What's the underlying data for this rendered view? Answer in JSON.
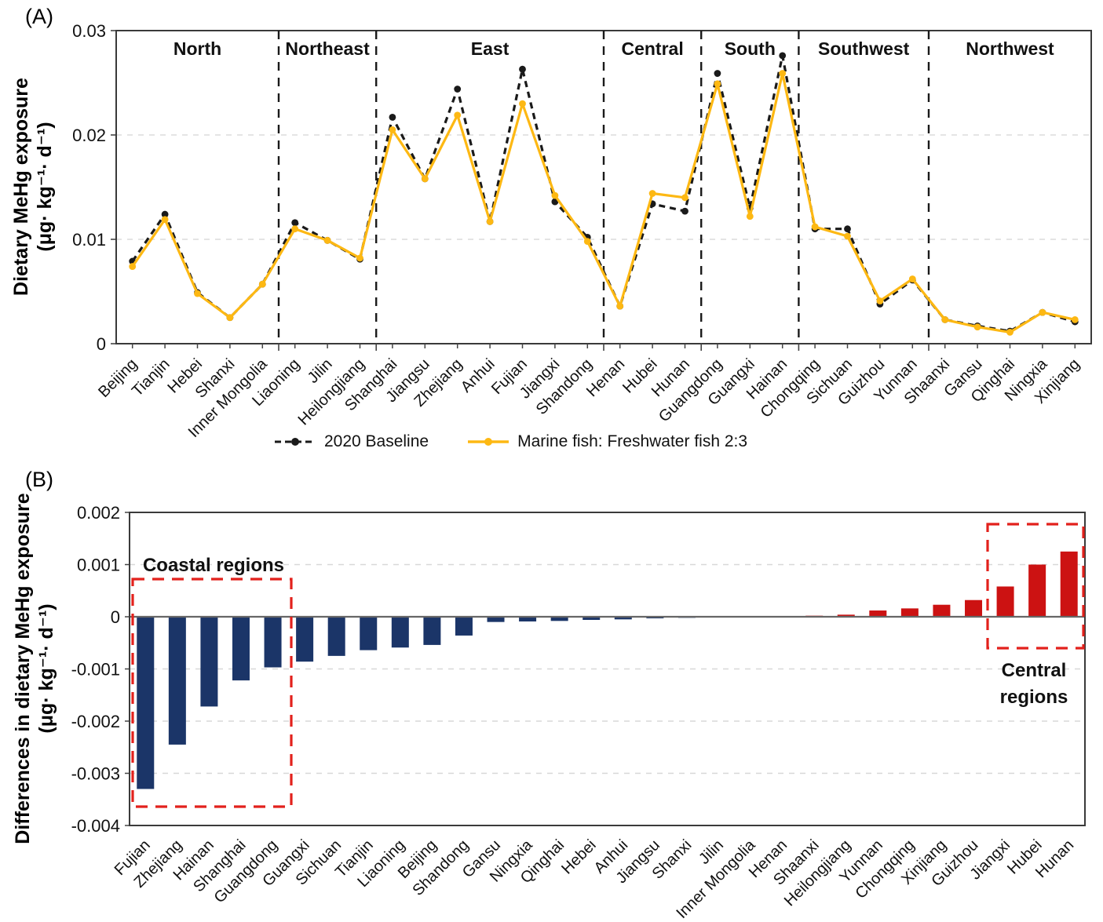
{
  "page": {
    "panel_a_label": "(A)",
    "panel_b_label": "(B)"
  },
  "chart_data": [
    {
      "type": "line",
      "panel": "A",
      "ylabel_line1": "Dietary MeHg exposure",
      "ylabel_line2": "(μg· kg⁻¹· d⁻¹)",
      "ylim": [
        0,
        0.03
      ],
      "yticks": [
        0,
        0.01,
        0.02,
        0.03
      ],
      "ytick_labels": [
        "0",
        "0.01",
        "0.02",
        "0.03"
      ],
      "grid": "dashed-horizontal",
      "legend_position": "bottom",
      "categories": [
        "Beijing",
        "Tianjin",
        "Hebei",
        "Shanxi",
        "Inner Mongolia",
        "Liaoning",
        "Jilin",
        "Heilongjiang",
        "Shanghai",
        "Jiangsu",
        "Zhejiang",
        "Anhui",
        "Fujian",
        "Jiangxi",
        "Shandong",
        "Henan",
        "Hubei",
        "Hunan",
        "Guangdong",
        "Guangxi",
        "Hainan",
        "Chongqing",
        "Sichuan",
        "Guizhou",
        "Yunnan",
        "Shaanxi",
        "Gansu",
        "Qinghai",
        "Ningxia",
        "Xinjiang"
      ],
      "regions": [
        {
          "label": "North",
          "count": 5
        },
        {
          "label": "Northeast",
          "count": 3
        },
        {
          "label": "East",
          "count": 7
        },
        {
          "label": "Central",
          "count": 3
        },
        {
          "label": "South",
          "count": 3
        },
        {
          "label": "Southwest",
          "count": 4
        },
        {
          "label": "Northwest",
          "count": 5
        }
      ],
      "series": [
        {
          "name": "2020 Baseline",
          "color": "#1a1a1a",
          "style": "dashed",
          "values": [
            0.0079,
            0.0124,
            0.0049,
            0.0025,
            0.0057,
            0.0116,
            0.0099,
            0.0081,
            0.0217,
            0.0158,
            0.0244,
            0.0117,
            0.0263,
            0.0136,
            0.0102,
            0.0036,
            0.0134,
            0.0127,
            0.0259,
            0.013,
            0.0276,
            0.011,
            0.011,
            0.0038,
            0.0061,
            0.0023,
            0.0017,
            0.0012,
            0.003,
            0.0021
          ]
        },
        {
          "name": "Marine fish: Freshwater fish 2:3",
          "color": "#FDB813",
          "style": "solid",
          "values": [
            0.0074,
            0.0119,
            0.0048,
            0.0025,
            0.0057,
            0.011,
            0.0099,
            0.0082,
            0.0205,
            0.0158,
            0.0219,
            0.0117,
            0.023,
            0.0142,
            0.0098,
            0.0036,
            0.0144,
            0.014,
            0.0249,
            0.0122,
            0.0259,
            0.0112,
            0.0103,
            0.0041,
            0.0062,
            0.0023,
            0.0016,
            0.0011,
            0.003,
            0.0023
          ]
        }
      ]
    },
    {
      "type": "bar",
      "panel": "B",
      "ylabel_line1": "Differences in dietary MeHg exposure",
      "ylabel_line2": "(μg· kg⁻¹· d⁻¹)",
      "ylim": [
        -0.004,
        0.002
      ],
      "yticks": [
        0.002,
        0.001,
        0,
        -0.001,
        -0.002,
        -0.003,
        -0.004
      ],
      "ytick_labels": [
        "0.002",
        "0.001",
        "0",
        "-0.001",
        "-0.002",
        "-0.003",
        "-0.004"
      ],
      "grid": "dashed-horizontal",
      "categories": [
        "Fujian",
        "Zhejiang",
        "Hainan",
        "Shanghai",
        "Guangdong",
        "Guangxi",
        "Sichuan",
        "Tianjin",
        "Liaoning",
        "Beijing",
        "Shandong",
        "Gansu",
        "Ningxia",
        "Qinghai",
        "Hebei",
        "Anhui",
        "Jiangsu",
        "Shanxi",
        "Jilin",
        "Inner Mongolia",
        "Henan",
        "Shaanxi",
        "Heilongjiang",
        "Yunnan",
        "Chongqing",
        "Xinjiang",
        "Guizhou",
        "Jiangxi",
        "Hubei",
        "Hunan"
      ],
      "values": [
        -0.0033,
        -0.00245,
        -0.00172,
        -0.00122,
        -0.00097,
        -0.00086,
        -0.00075,
        -0.00064,
        -0.00059,
        -0.00054,
        -0.00036,
        -0.0001,
        -9e-05,
        -8e-05,
        -6e-05,
        -5e-05,
        -3e-05,
        -2e-05,
        -1e-05,
        -1e-05,
        -5e-06,
        2e-05,
        4e-05,
        0.00012,
        0.00016,
        0.00023,
        0.00032,
        0.00058,
        0.001,
        0.00125
      ],
      "bar_colors": {
        "negative": "#1B3568",
        "positive": "#CC1212"
      },
      "annotations": [
        {
          "lines": [
            "Coastal regions"
          ],
          "color": "#E2211C",
          "bar_start": 0,
          "bar_end": 4
        },
        {
          "lines": [
            "Central",
            "regions"
          ],
          "color": "#E2211C",
          "bar_start": 27,
          "bar_end": 29
        }
      ]
    }
  ]
}
